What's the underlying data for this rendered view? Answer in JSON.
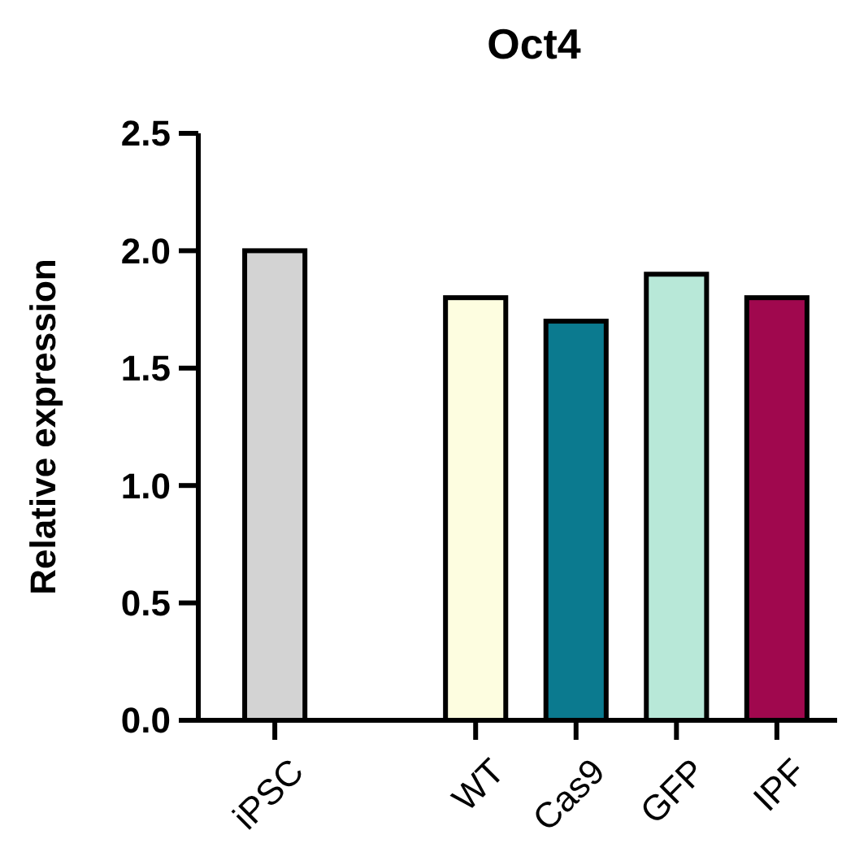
{
  "chart_data": {
    "type": "bar",
    "title": "Oct4",
    "ylabel": "Relative expression",
    "categories": [
      "iPSC",
      null,
      "WT",
      "Cas9",
      "GFP",
      "IPF"
    ],
    "values": [
      2.0,
      null,
      1.8,
      1.7,
      1.9,
      1.8
    ],
    "colors": [
      "#d3d3d3",
      null,
      "#fdfde0",
      "#0b7a8f",
      "#b8e8d8",
      "#a0084e"
    ],
    "ylim": [
      0,
      2.5
    ],
    "yticks": [
      {
        "value": 0,
        "label": "0.0"
      },
      0.5,
      {
        "value": 1,
        "label": "1.0"
      },
      1.5,
      {
        "value": 2,
        "label": "2.0"
      },
      2.5
    ],
    "grid": false
  }
}
